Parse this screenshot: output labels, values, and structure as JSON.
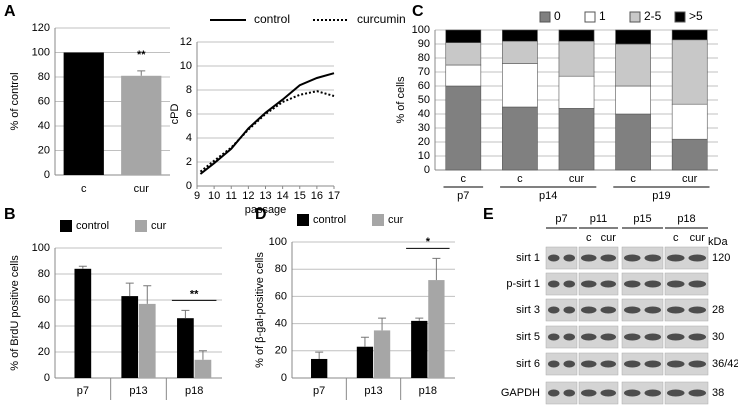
{
  "chart_data": [
    {
      "panel": "A",
      "type": "bar",
      "ylabel": "% of control",
      "categories": [
        "c",
        "cur"
      ],
      "series": [
        {
          "values": [
            100,
            81
          ],
          "errors": [
            0,
            4
          ],
          "colors": [
            "#000000",
            "#a6a6a6"
          ]
        }
      ],
      "ylim": [
        0,
        120
      ],
      "yticks": [
        0,
        20,
        40,
        60,
        80,
        100,
        120
      ],
      "annotation": "**",
      "grid": true
    },
    {
      "type": "line",
      "xlabel": "passage",
      "ylabel": "cPD",
      "legend": "top",
      "x": [
        9.2,
        10,
        11,
        12,
        13,
        14,
        15,
        16,
        17
      ],
      "series": [
        {
          "name": "control",
          "color": "#000000",
          "style": "solid",
          "values": [
            1.0,
            1.9,
            3.1,
            4.8,
            6.1,
            7.2,
            8.4,
            9.0,
            9.4
          ]
        },
        {
          "name": "curcumin",
          "color": "#000000",
          "style": "dotted",
          "values": [
            1.2,
            2.1,
            3.2,
            4.7,
            6.0,
            7.0,
            7.6,
            7.9,
            7.5
          ]
        }
      ],
      "xlim": [
        9,
        17
      ],
      "xticks": [
        9,
        10,
        11,
        12,
        13,
        14,
        15,
        16,
        17
      ],
      "ylim": [
        0,
        12
      ],
      "yticks": [
        0,
        2,
        4,
        6,
        8,
        10,
        12
      ],
      "grid": true
    },
    {
      "panel": "C",
      "type": "bar",
      "stacked": true,
      "ylabel": "% of cells",
      "legend": "top",
      "categories": [
        "c",
        "c",
        "cur",
        "c",
        "cur"
      ],
      "groups": [
        {
          "label": "p7",
          "count": 1
        },
        {
          "label": "p14",
          "count": 2
        },
        {
          "label": "p19",
          "count": 2
        }
      ],
      "series": [
        {
          "name": "0",
          "color": "#808080",
          "values": [
            60,
            45,
            44,
            40,
            22
          ]
        },
        {
          "name": "1",
          "color": "#ffffff",
          "values": [
            15,
            31,
            23,
            20,
            25
          ]
        },
        {
          "name": "2-5",
          "color": "#c8c8c8",
          "values": [
            16,
            16,
            25,
            30,
            46
          ]
        },
        {
          "name": ">5",
          "color": "#000000",
          "values": [
            9,
            8,
            8,
            10,
            7
          ]
        }
      ],
      "ylim": [
        0,
        100
      ],
      "yticks": [
        0,
        10,
        20,
        30,
        40,
        50,
        60,
        70,
        80,
        90,
        100
      ],
      "grid": true
    },
    {
      "panel": "B",
      "type": "bar",
      "ylabel": "% of BrdU positive cells",
      "legend": "top",
      "categories": [
        "p7",
        "p13",
        "p18"
      ],
      "series": [
        {
          "name": "control",
          "color": "#000000",
          "values": [
            84,
            63,
            46
          ],
          "errors": [
            2,
            10,
            6
          ]
        },
        {
          "name": "cur",
          "color": "#a6a6a6",
          "values": [
            null,
            57,
            14
          ],
          "errors": [
            null,
            14,
            7
          ]
        }
      ],
      "ylim": [
        0,
        100
      ],
      "yticks": [
        0,
        20,
        40,
        60,
        80,
        100
      ],
      "annotation": "**",
      "grid": true
    },
    {
      "panel": "D",
      "type": "bar",
      "ylabel": "% of β-gal-positive cells",
      "legend": "top",
      "categories": [
        "p7",
        "p13",
        "p18"
      ],
      "series": [
        {
          "name": "control",
          "color": "#000000",
          "values": [
            14,
            23,
            42
          ],
          "errors": [
            5,
            7,
            2
          ]
        },
        {
          "name": "cur",
          "color": "#a6a6a6",
          "values": [
            null,
            35,
            72
          ],
          "errors": [
            null,
            9,
            16
          ]
        }
      ],
      "ylim": [
        0,
        100
      ],
      "yticks": [
        0,
        20,
        40,
        60,
        80,
        100
      ],
      "annotation": "*",
      "grid": true
    }
  ],
  "blot": {
    "panel": "E",
    "unit": "kDa",
    "groups": [
      {
        "label": "p7"
      },
      {
        "label": "p11",
        "lanes": [
          "c",
          "cur"
        ]
      },
      {
        "label": "p15"
      },
      {
        "label": "p18",
        "lanes": [
          "c",
          "cur"
        ]
      }
    ],
    "rows": [
      {
        "name": "sirt 1",
        "kda": "120"
      },
      {
        "name": "p-sirt 1"
      },
      {
        "name": "sirt 3",
        "kda": "28"
      },
      {
        "name": "sirt 5",
        "kda": "30"
      },
      {
        "name": "sirt 6",
        "kda": "36/42"
      },
      {
        "name": "GAPDH",
        "kda": "38"
      }
    ]
  }
}
